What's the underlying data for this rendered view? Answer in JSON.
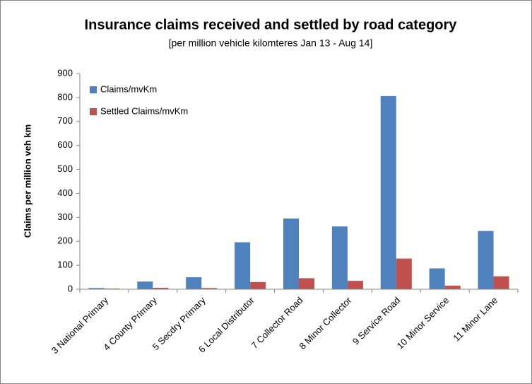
{
  "chart_data": {
    "type": "bar",
    "title": "Insurance claims received and settled by road category",
    "subtitle": "[per million vehicle kilomteres Jan 13 - Aug 14]",
    "y_label": "Claims per million veh km",
    "categories": [
      "3 National Primary",
      "4 County Primary",
      "5 Secdry Primary",
      "6 Local Distributor",
      "7 Collector Road",
      "8 Minor Collector",
      "9 Service Road",
      "10 Minor Service",
      "11 Minor Lane"
    ],
    "series": [
      {
        "name": "Claims/mvKm",
        "color": "#4f81bd",
        "values": [
          5,
          32,
          50,
          196,
          295,
          262,
          806,
          87,
          243
        ]
      },
      {
        "name": "Settled Claims/mvKm",
        "color": "#c0504d",
        "values": [
          3,
          6,
          5,
          30,
          46,
          35,
          128,
          15,
          54
        ]
      }
    ],
    "ylim": [
      0,
      900
    ],
    "yticks": [
      0,
      100,
      200,
      300,
      400,
      500,
      600,
      700,
      800,
      900
    ],
    "legend": "top-left",
    "grid": false
  }
}
